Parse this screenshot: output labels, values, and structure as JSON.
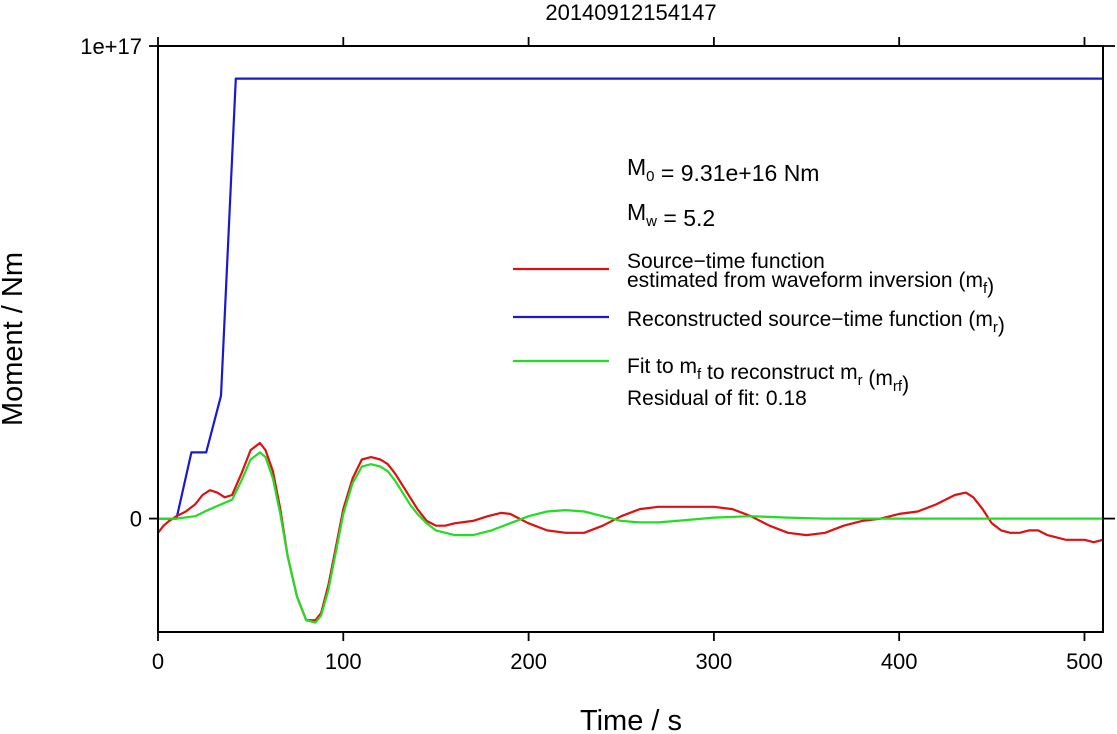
{
  "chart_data": {
    "type": "line",
    "title": "20140912154147",
    "xlabel": "Time / s",
    "ylabel": "Moment / Nm",
    "xlim": [
      0,
      510
    ],
    "ylim": [
      -2.4e+16,
      1e+17
    ],
    "xticks": [
      0,
      100,
      200,
      300,
      400,
      500
    ],
    "xtick_labels": [
      "0",
      "100",
      "200",
      "300",
      "400",
      "500"
    ],
    "yticks": [
      0,
      1e+17
    ],
    "ytick_labels": [
      "0",
      "1e+17"
    ],
    "grid": false,
    "legend_position": "right",
    "annotations": {
      "m0": {
        "prefix": "M",
        "sub": "0",
        "text": " = 9.31e+16 Nm"
      },
      "mw": {
        "prefix": "M",
        "sub": "w",
        "text": " = 5.2"
      },
      "residual": "Residual of fit: 0.18"
    },
    "legend": [
      {
        "color": "#dd1111",
        "lines": [
          [
            {
              "t": "Source−time function"
            }
          ],
          [
            {
              "t": "estimated from waveform inversion (m"
            },
            {
              "t": "f",
              "sub": true
            },
            {
              "t": ")"
            }
          ]
        ]
      },
      {
        "color": "#1a1acc",
        "lines": [
          [
            {
              "t": "Reconstructed source−time function (m"
            },
            {
              "t": "r",
              "sub": true
            },
            {
              "t": ")"
            }
          ]
        ]
      },
      {
        "color": "#22dd22",
        "lines": [
          [
            {
              "t": "Fit to m"
            },
            {
              "t": "f",
              "sub": true
            },
            {
              "t": " to reconstruct m"
            },
            {
              "t": "r",
              "sub": true
            },
            {
              "t": " (m"
            },
            {
              "t": "rf",
              "sub": true
            },
            {
              "t": ")"
            }
          ]
        ]
      }
    ],
    "series": [
      {
        "color": "#1a1acc",
        "x": [
          0,
          10,
          18,
          26,
          34,
          42,
          510
        ],
        "y": [
          0,
          0,
          1.4e+16,
          1.4e+16,
          2.6e+16,
          9.31e+16,
          9.31e+16
        ]
      },
      {
        "color": "#dd1111",
        "x": [
          0,
          3,
          6,
          10,
          15,
          20,
          24,
          28,
          32,
          36,
          40,
          45,
          50,
          55,
          58,
          62,
          66,
          70,
          75,
          80,
          85,
          88,
          92,
          96,
          100,
          105,
          110,
          115,
          120,
          124,
          128,
          132,
          136,
          140,
          145,
          150,
          155,
          160,
          170,
          178,
          185,
          190,
          200,
          210,
          220,
          230,
          240,
          250,
          260,
          270,
          280,
          300,
          310,
          320,
          330,
          340,
          350,
          360,
          370,
          380,
          390,
          400,
          410,
          420,
          430,
          436,
          440,
          445,
          450,
          455,
          460,
          465,
          470,
          475,
          480,
          490,
          500,
          505,
          510
        ],
        "y": [
          -3000000000000000.0,
          -1500000000000000.0,
          -500000000000000.0,
          500000000000000.0,
          1500000000000000.0,
          3000000000000000.0,
          5000000000000000.0,
          6000000000000000.0,
          5500000000000000.0,
          4500000000000000.0,
          5000000000000000.0,
          9500000000000000.0,
          1.45e+16,
          1.6e+16,
          1.45e+16,
          1e+16,
          2000000000000000.0,
          -8000000000000000.0,
          -1.65e+16,
          -2.15e+16,
          -2.15e+16,
          -2e+16,
          -1.4e+16,
          -6000000000000000.0,
          2000000000000000.0,
          8500000000000000.0,
          1.25e+16,
          1.3e+16,
          1.25e+16,
          1.15e+16,
          9500000000000000.0,
          7000000000000000.0,
          4500000000000000.0,
          2000000000000000.0,
          -500000000000000.0,
          -1500000000000000.0,
          -1500000000000000.0,
          -1000000000000000.0,
          -500000000000000.0,
          500000000000000.0,
          1200000000000000.0,
          1000000000000000.0,
          -1000000000000000.0,
          -2500000000000000.0,
          -3000000000000000.0,
          -3000000000000000.0,
          -1500000000000000.0,
          500000000000000.0,
          2000000000000000.0,
          2500000000000000.0,
          2500000000000000.0,
          2500000000000000.0,
          2000000000000000.0,
          500000000000000.0,
          -1500000000000000.0,
          -3000000000000000.0,
          -3500000000000000.0,
          -3000000000000000.0,
          -1500000000000000.0,
          -500000000000000.0,
          0.0,
          1000000000000000.0,
          1500000000000000.0,
          3000000000000000.0,
          5000000000000000.0,
          5500000000000000.0,
          4500000000000000.0,
          2000000000000000.0,
          -1000000000000000.0,
          -2500000000000000.0,
          -3000000000000000.0,
          -3000000000000000.0,
          -2500000000000000.0,
          -2500000000000000.0,
          -3500000000000000.0,
          -4500000000000000.0,
          -4500000000000000.0,
          -5000000000000000.0,
          -4500000000000000.0
        ]
      },
      {
        "color": "#22dd22",
        "x": [
          0,
          10,
          20,
          28,
          34,
          40,
          45,
          50,
          55,
          58,
          62,
          66,
          70,
          75,
          80,
          85,
          88,
          92,
          96,
          100,
          105,
          110,
          115,
          120,
          124,
          128,
          132,
          136,
          140,
          145,
          150,
          160,
          170,
          180,
          190,
          200,
          210,
          220,
          230,
          240,
          250,
          260,
          270,
          280,
          300,
          320,
          340,
          360,
          400,
          450,
          510
        ],
        "y": [
          0,
          0,
          500000000000000.0,
          2000000000000000.0,
          3000000000000000.0,
          4000000000000000.0,
          8000000000000000.0,
          1.25e+16,
          1.4e+16,
          1.3e+16,
          8500000000000000.0,
          1000000000000000.0,
          -8000000000000000.0,
          -1.65e+16,
          -2.15e+16,
          -2.2e+16,
          -2.05e+16,
          -1.5e+16,
          -7000000000000000.0,
          1000000000000000.0,
          7500000000000000.0,
          1.1e+16,
          1.15e+16,
          1.1e+16,
          1e+16,
          8000000000000000.0,
          5500000000000000.0,
          3000000000000000.0,
          1000000000000000.0,
          -1000000000000000.0,
          -2500000000000000.0,
          -3500000000000000.0,
          -3500000000000000.0,
          -2500000000000000.0,
          -1000000000000000.0,
          500000000000000.0,
          1500000000000000.0,
          1800000000000000.0,
          1500000000000000.0,
          500000000000000.0,
          -500000000000000.0,
          -800000000000000.0,
          -800000000000000.0,
          -500000000000000.0,
          200000000000000.0,
          500000000000000.0,
          200000000000000.0,
          0.0,
          0.0,
          0.0,
          0.0
        ]
      }
    ]
  }
}
